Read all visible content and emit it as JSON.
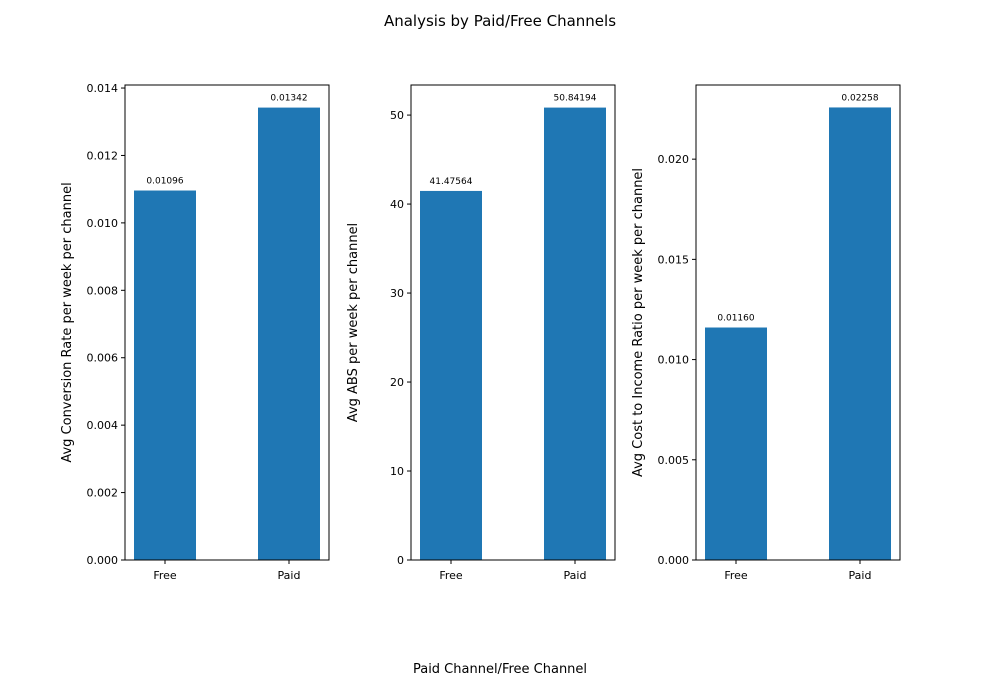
{
  "title": "Analysis by Paid/Free Channels",
  "xlabel": "Paid Channel/Free Channel",
  "colors": {
    "bar": "#1f77b4"
  },
  "chart_data": [
    {
      "type": "bar",
      "categories": [
        "Free",
        "Paid"
      ],
      "values": [
        0.01096,
        0.01342
      ],
      "data_labels": [
        "0.01096",
        "0.01342"
      ],
      "ylabel": "Avg Conversion Rate per week per channel",
      "ylim": [
        0,
        0.01409
      ],
      "yticks": [
        0,
        0.002,
        0.004,
        0.006,
        0.008,
        0.01,
        0.012,
        0.014
      ],
      "ytick_labels": [
        "0.000",
        "0.002",
        "0.004",
        "0.006",
        "0.008",
        "0.010",
        "0.012",
        "0.014"
      ],
      "grid": false
    },
    {
      "type": "bar",
      "categories": [
        "Free",
        "Paid"
      ],
      "values": [
        41.47564,
        50.84194
      ],
      "data_labels": [
        "41.47564",
        "50.84194"
      ],
      "ylabel": "Avg ABS per week per channel",
      "ylim": [
        0,
        53.38
      ],
      "yticks": [
        0,
        10,
        20,
        30,
        40,
        50
      ],
      "ytick_labels": [
        "0",
        "10",
        "20",
        "30",
        "40",
        "50"
      ],
      "grid": false
    },
    {
      "type": "bar",
      "categories": [
        "Free",
        "Paid"
      ],
      "values": [
        0.0116,
        0.02258
      ],
      "data_labels": [
        "0.01160",
        "0.02258"
      ],
      "ylabel": "Avg Cost to Income Ratio per week per channel",
      "ylim": [
        0,
        0.0237
      ],
      "yticks": [
        0,
        0.005,
        0.01,
        0.015,
        0.02
      ],
      "ytick_labels": [
        "0.000",
        "0.005",
        "0.010",
        "0.015",
        "0.020"
      ],
      "grid": false
    }
  ]
}
